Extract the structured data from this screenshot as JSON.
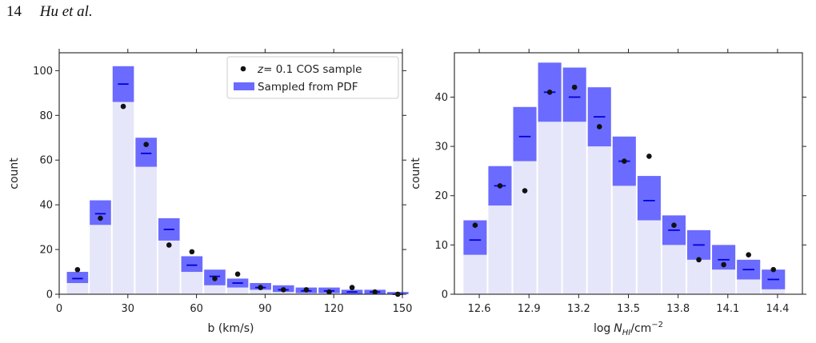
{
  "header": {
    "page_number": "14",
    "authors": "Hu et al."
  },
  "colors": {
    "band": "#6b6bff",
    "base": "#e6e6fa",
    "median": "#0000d8",
    "points": "#111111",
    "axis": "#222222"
  },
  "chart_data": [
    {
      "type": "bar",
      "xlabel": "b (km/s)",
      "ylabel": "count",
      "xlim": [
        0,
        150
      ],
      "ylim": [
        0,
        108
      ],
      "xticks": [
        0,
        30,
        60,
        90,
        120,
        150
      ],
      "xtick_labels": [
        "0",
        "30",
        "60",
        "90",
        "120",
        "150"
      ],
      "yticks": [
        0,
        20,
        40,
        60,
        80,
        100
      ],
      "ytick_labels": [
        "0",
        "20",
        "40",
        "60",
        "80",
        "100"
      ],
      "bin_width": 10,
      "legend_position": "top-right",
      "legend": {
        "points_label_italic": "z",
        "points_label_rest": "= 0.1 COS sample",
        "band_label": "Sampled from PDF"
      },
      "bins": [
        {
          "center": 8,
          "low": 5,
          "high": 10,
          "median": 7,
          "observed": 11
        },
        {
          "center": 18,
          "low": 31,
          "high": 42,
          "median": 36,
          "observed": 34
        },
        {
          "center": 28,
          "low": 86,
          "high": 102,
          "median": 94,
          "observed": 84
        },
        {
          "center": 38,
          "low": 57,
          "high": 70,
          "median": 63,
          "observed": 67
        },
        {
          "center": 48,
          "low": 24,
          "high": 34,
          "median": 29,
          "observed": 22
        },
        {
          "center": 58,
          "low": 10,
          "high": 17,
          "median": 13,
          "observed": 19
        },
        {
          "center": 68,
          "low": 4,
          "high": 11,
          "median": 8,
          "observed": 7
        },
        {
          "center": 78,
          "low": 3,
          "high": 7,
          "median": 5,
          "observed": 9
        },
        {
          "center": 88,
          "low": 2,
          "high": 5,
          "median": 3,
          "observed": 3
        },
        {
          "center": 98,
          "low": 1,
          "high": 4,
          "median": 2,
          "observed": 2
        },
        {
          "center": 108,
          "low": 0.5,
          "high": 3,
          "median": 1.5,
          "observed": 2
        },
        {
          "center": 118,
          "low": 0.5,
          "high": 3,
          "median": 1.5,
          "observed": 1
        },
        {
          "center": 128,
          "low": 0,
          "high": 2,
          "median": 1,
          "observed": 3
        },
        {
          "center": 138,
          "low": 0,
          "high": 2,
          "median": 1,
          "observed": 1
        },
        {
          "center": 148,
          "low": 0,
          "high": 1,
          "median": 0,
          "observed": 0
        }
      ]
    },
    {
      "type": "bar",
      "xlabel_main": "log",
      "xlabel_var": "N",
      "xlabel_sub": "HI",
      "xlabel_unit": "/cm",
      "xlabel_exp": "−2",
      "ylabel": "count",
      "xlim": [
        12.45,
        14.55
      ],
      "ylim": [
        0,
        49
      ],
      "xticks": [
        12.6,
        12.9,
        13.2,
        13.5,
        13.8,
        14.1,
        14.4
      ],
      "xtick_labels": [
        "12.6",
        "12.9",
        "13.2",
        "13.5",
        "13.8",
        "14.1",
        "14.4"
      ],
      "yticks": [
        0,
        10,
        20,
        30,
        40
      ],
      "ytick_labels": [
        "0",
        "10",
        "20",
        "30",
        "40"
      ],
      "bin_width": 0.15,
      "bins": [
        {
          "center": 12.575,
          "low": 8,
          "high": 15,
          "median": 11,
          "observed": 14
        },
        {
          "center": 12.725,
          "low": 18,
          "high": 26,
          "median": 22,
          "observed": 22
        },
        {
          "center": 12.875,
          "low": 27,
          "high": 38,
          "median": 32,
          "observed": 21
        },
        {
          "center": 13.025,
          "low": 35,
          "high": 47,
          "median": 41,
          "observed": 41
        },
        {
          "center": 13.175,
          "low": 35,
          "high": 46,
          "median": 40,
          "observed": 42
        },
        {
          "center": 13.325,
          "low": 30,
          "high": 42,
          "median": 36,
          "observed": 34
        },
        {
          "center": 13.475,
          "low": 22,
          "high": 32,
          "median": 27,
          "observed": 27
        },
        {
          "center": 13.625,
          "low": 15,
          "high": 24,
          "median": 19,
          "observed": 28
        },
        {
          "center": 13.775,
          "low": 10,
          "high": 16,
          "median": 13,
          "observed": 14
        },
        {
          "center": 13.925,
          "low": 7,
          "high": 13,
          "median": 10,
          "observed": 7
        },
        {
          "center": 14.075,
          "low": 5,
          "high": 10,
          "median": 7,
          "observed": 6
        },
        {
          "center": 14.225,
          "low": 3,
          "high": 7,
          "median": 5,
          "observed": 8
        },
        {
          "center": 14.375,
          "low": 1,
          "high": 5,
          "median": 3,
          "observed": 5
        }
      ]
    }
  ]
}
